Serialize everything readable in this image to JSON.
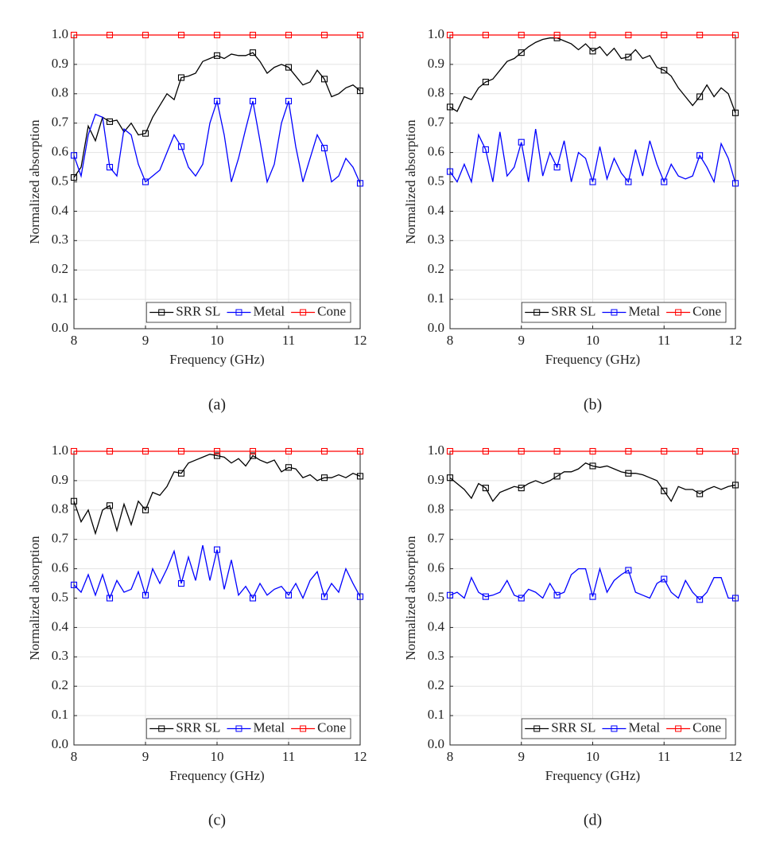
{
  "chart_data": [
    {
      "type": "line",
      "caption": "(a)",
      "xlabel": "Frequency (GHz)",
      "ylabel": "Normalized absorption",
      "x": [
        8,
        8.1,
        8.2,
        8.3,
        8.4,
        8.5,
        8.6,
        8.7,
        8.8,
        8.9,
        9,
        9.1,
        9.2,
        9.3,
        9.4,
        9.5,
        9.6,
        9.7,
        9.8,
        9.9,
        10,
        10.1,
        10.2,
        10.3,
        10.4,
        10.5,
        10.6,
        10.7,
        10.8,
        10.9,
        11,
        11.1,
        11.2,
        11.3,
        11.4,
        11.5,
        11.6,
        11.7,
        11.8,
        11.9,
        12
      ],
      "series": [
        {
          "name": "SRR SL",
          "color": "#000000",
          "values": [
            0.515,
            0.55,
            0.69,
            0.64,
            0.72,
            0.705,
            0.71,
            0.67,
            0.7,
            0.66,
            0.665,
            0.72,
            0.76,
            0.8,
            0.78,
            0.855,
            0.86,
            0.87,
            0.91,
            0.92,
            0.93,
            0.92,
            0.935,
            0.93,
            0.93,
            0.94,
            0.91,
            0.87,
            0.89,
            0.9,
            0.89,
            0.86,
            0.83,
            0.84,
            0.88,
            0.85,
            0.79,
            0.8,
            0.82,
            0.83,
            0.81
          ]
        },
        {
          "name": "Metal",
          "color": "#0000ff",
          "values": [
            0.59,
            0.52,
            0.66,
            0.73,
            0.72,
            0.55,
            0.52,
            0.68,
            0.66,
            0.56,
            0.5,
            0.52,
            0.54,
            0.6,
            0.66,
            0.62,
            0.55,
            0.52,
            0.56,
            0.7,
            0.775,
            0.66,
            0.5,
            0.58,
            0.68,
            0.775,
            0.64,
            0.5,
            0.56,
            0.7,
            0.775,
            0.62,
            0.5,
            0.58,
            0.66,
            0.615,
            0.5,
            0.52,
            0.58,
            0.55,
            0.495
          ]
        },
        {
          "name": "Cone",
          "color": "#ff0000",
          "values": [
            1,
            1,
            1,
            1,
            1,
            1,
            1,
            1,
            1,
            1,
            1,
            1,
            1,
            1,
            1,
            1,
            1,
            1,
            1,
            1,
            1,
            1,
            1,
            1,
            1,
            1,
            1,
            1,
            1,
            1,
            1,
            1,
            1,
            1,
            1,
            1,
            1,
            1,
            1,
            1,
            1
          ]
        }
      ],
      "xlim": [
        8,
        12
      ],
      "xticks": [
        8,
        9,
        10,
        11,
        12
      ],
      "ylim": [
        0,
        1
      ],
      "yticks": [
        {
          "value": 0,
          "label": "0.0"
        },
        0.1,
        0.2,
        0.3,
        0.4,
        0.5,
        0.6,
        0.7,
        0.8,
        0.9,
        {
          "value": 1,
          "label": "1.0"
        }
      ],
      "grid": true,
      "legend": "lower right"
    },
    {
      "type": "line",
      "caption": "(b)",
      "xlabel": "Frequency (GHz)",
      "ylabel": "Normalized absorption",
      "x": [
        8,
        8.1,
        8.2,
        8.3,
        8.4,
        8.5,
        8.6,
        8.7,
        8.8,
        8.9,
        9,
        9.1,
        9.2,
        9.3,
        9.4,
        9.5,
        9.6,
        9.7,
        9.8,
        9.9,
        10,
        10.1,
        10.2,
        10.3,
        10.4,
        10.5,
        10.6,
        10.7,
        10.8,
        10.9,
        11,
        11.1,
        11.2,
        11.3,
        11.4,
        11.5,
        11.6,
        11.7,
        11.8,
        11.9,
        12
      ],
      "series": [
        {
          "name": "SRR SL",
          "color": "#000000",
          "values": [
            0.755,
            0.74,
            0.79,
            0.78,
            0.82,
            0.84,
            0.85,
            0.88,
            0.91,
            0.92,
            0.94,
            0.96,
            0.975,
            0.985,
            0.99,
            0.99,
            0.98,
            0.97,
            0.95,
            0.97,
            0.945,
            0.96,
            0.93,
            0.955,
            0.92,
            0.925,
            0.95,
            0.92,
            0.93,
            0.89,
            0.88,
            0.86,
            0.82,
            0.79,
            0.76,
            0.79,
            0.83,
            0.79,
            0.82,
            0.8,
            0.735
          ]
        },
        {
          "name": "Metal",
          "color": "#0000ff",
          "values": [
            0.535,
            0.5,
            0.56,
            0.5,
            0.66,
            0.61,
            0.5,
            0.67,
            0.52,
            0.55,
            0.635,
            0.5,
            0.68,
            0.52,
            0.6,
            0.55,
            0.64,
            0.5,
            0.6,
            0.58,
            0.5,
            0.62,
            0.51,
            0.58,
            0.53,
            0.5,
            0.61,
            0.52,
            0.64,
            0.56,
            0.5,
            0.56,
            0.52,
            0.51,
            0.52,
            0.59,
            0.55,
            0.5,
            0.63,
            0.58,
            0.495
          ]
        },
        {
          "name": "Cone",
          "color": "#ff0000",
          "values": [
            1,
            1,
            1,
            1,
            1,
            1,
            1,
            1,
            1,
            1,
            1,
            1,
            1,
            1,
            1,
            1,
            1,
            1,
            1,
            1,
            1,
            1,
            1,
            1,
            1,
            1,
            1,
            1,
            1,
            1,
            1,
            1,
            1,
            1,
            1,
            1,
            1,
            1,
            1,
            1,
            1
          ]
        }
      ],
      "xlim": [
        8,
        12
      ],
      "xticks": [
        8,
        9,
        10,
        11,
        12
      ],
      "ylim": [
        0,
        1
      ],
      "yticks": [
        {
          "value": 0,
          "label": "0.0"
        },
        0.1,
        0.2,
        0.3,
        0.4,
        0.5,
        0.6,
        0.7,
        0.8,
        0.9,
        {
          "value": 1,
          "label": "1.0"
        }
      ],
      "grid": true,
      "legend": "lower right"
    },
    {
      "type": "line",
      "caption": "(c)",
      "xlabel": "Frequency (GHz)",
      "ylabel": "Normalized absorption",
      "x": [
        8,
        8.1,
        8.2,
        8.3,
        8.4,
        8.5,
        8.6,
        8.7,
        8.8,
        8.9,
        9,
        9.1,
        9.2,
        9.3,
        9.4,
        9.5,
        9.6,
        9.7,
        9.8,
        9.9,
        10,
        10.1,
        10.2,
        10.3,
        10.4,
        10.5,
        10.6,
        10.7,
        10.8,
        10.9,
        11,
        11.1,
        11.2,
        11.3,
        11.4,
        11.5,
        11.6,
        11.7,
        11.8,
        11.9,
        12
      ],
      "series": [
        {
          "name": "SRR SL",
          "color": "#000000",
          "values": [
            0.83,
            0.76,
            0.8,
            0.72,
            0.8,
            0.815,
            0.73,
            0.82,
            0.75,
            0.83,
            0.8,
            0.86,
            0.85,
            0.88,
            0.93,
            0.925,
            0.96,
            0.97,
            0.98,
            0.99,
            0.985,
            0.98,
            0.96,
            0.975,
            0.95,
            0.985,
            0.97,
            0.96,
            0.97,
            0.93,
            0.945,
            0.94,
            0.91,
            0.92,
            0.9,
            0.91,
            0.91,
            0.92,
            0.91,
            0.925,
            0.915
          ]
        },
        {
          "name": "Metal",
          "color": "#0000ff",
          "values": [
            0.545,
            0.52,
            0.58,
            0.51,
            0.58,
            0.5,
            0.56,
            0.52,
            0.53,
            0.59,
            0.51,
            0.6,
            0.55,
            0.6,
            0.66,
            0.55,
            0.64,
            0.56,
            0.68,
            0.56,
            0.665,
            0.53,
            0.63,
            0.51,
            0.54,
            0.5,
            0.55,
            0.51,
            0.53,
            0.54,
            0.51,
            0.55,
            0.5,
            0.56,
            0.59,
            0.505,
            0.55,
            0.52,
            0.6,
            0.55,
            0.505
          ]
        },
        {
          "name": "Cone",
          "color": "#ff0000",
          "values": [
            1,
            1,
            1,
            1,
            1,
            1,
            1,
            1,
            1,
            1,
            1,
            1,
            1,
            1,
            1,
            1,
            1,
            1,
            1,
            1,
            1,
            1,
            1,
            1,
            1,
            1,
            1,
            1,
            1,
            1,
            1,
            1,
            1,
            1,
            1,
            1,
            1,
            1,
            1,
            1,
            1
          ]
        }
      ],
      "xlim": [
        8,
        12
      ],
      "xticks": [
        8,
        9,
        10,
        11,
        12
      ],
      "ylim": [
        0,
        1
      ],
      "yticks": [
        {
          "value": 0,
          "label": "0.0"
        },
        0.1,
        0.2,
        0.3,
        0.4,
        0.5,
        0.6,
        0.7,
        0.8,
        0.9,
        {
          "value": 1,
          "label": "1.0"
        }
      ],
      "grid": true,
      "legend": "lower right"
    },
    {
      "type": "line",
      "caption": "(d)",
      "xlabel": "Frequency (GHz)",
      "ylabel": "Normalized absorption",
      "x": [
        8,
        8.1,
        8.2,
        8.3,
        8.4,
        8.5,
        8.6,
        8.7,
        8.8,
        8.9,
        9,
        9.1,
        9.2,
        9.3,
        9.4,
        9.5,
        9.6,
        9.7,
        9.8,
        9.9,
        10,
        10.1,
        10.2,
        10.3,
        10.4,
        10.5,
        10.6,
        10.7,
        10.8,
        10.9,
        11,
        11.1,
        11.2,
        11.3,
        11.4,
        11.5,
        11.6,
        11.7,
        11.8,
        11.9,
        12
      ],
      "series": [
        {
          "name": "SRR SL",
          "color": "#000000",
          "values": [
            0.91,
            0.89,
            0.87,
            0.84,
            0.89,
            0.875,
            0.83,
            0.86,
            0.87,
            0.88,
            0.875,
            0.89,
            0.9,
            0.89,
            0.9,
            0.915,
            0.93,
            0.93,
            0.94,
            0.96,
            0.95,
            0.945,
            0.95,
            0.94,
            0.93,
            0.925,
            0.925,
            0.92,
            0.91,
            0.9,
            0.865,
            0.83,
            0.88,
            0.87,
            0.87,
            0.855,
            0.87,
            0.88,
            0.87,
            0.88,
            0.885
          ]
        },
        {
          "name": "Metal",
          "color": "#0000ff",
          "values": [
            0.51,
            0.52,
            0.5,
            0.57,
            0.52,
            0.505,
            0.51,
            0.52,
            0.56,
            0.51,
            0.5,
            0.53,
            0.52,
            0.5,
            0.55,
            0.51,
            0.52,
            0.58,
            0.6,
            0.6,
            0.505,
            0.6,
            0.52,
            0.56,
            0.58,
            0.595,
            0.52,
            0.51,
            0.5,
            0.55,
            0.565,
            0.52,
            0.5,
            0.56,
            0.52,
            0.495,
            0.52,
            0.57,
            0.57,
            0.5,
            0.5
          ]
        },
        {
          "name": "Cone",
          "color": "#ff0000",
          "values": [
            1,
            1,
            1,
            1,
            1,
            1,
            1,
            1,
            1,
            1,
            1,
            1,
            1,
            1,
            1,
            1,
            1,
            1,
            1,
            1,
            1,
            1,
            1,
            1,
            1,
            1,
            1,
            1,
            1,
            1,
            1,
            1,
            1,
            1,
            1,
            1,
            1,
            1,
            1,
            1,
            1
          ]
        }
      ],
      "xlim": [
        8,
        12
      ],
      "xticks": [
        8,
        9,
        10,
        11,
        12
      ],
      "ylim": [
        0,
        1
      ],
      "yticks": [
        {
          "value": 0,
          "label": "0.0"
        },
        0.1,
        0.2,
        0.3,
        0.4,
        0.5,
        0.6,
        0.7,
        0.8,
        0.9,
        {
          "value": 1,
          "label": "1.0"
        }
      ],
      "grid": true,
      "legend": "lower right"
    }
  ]
}
